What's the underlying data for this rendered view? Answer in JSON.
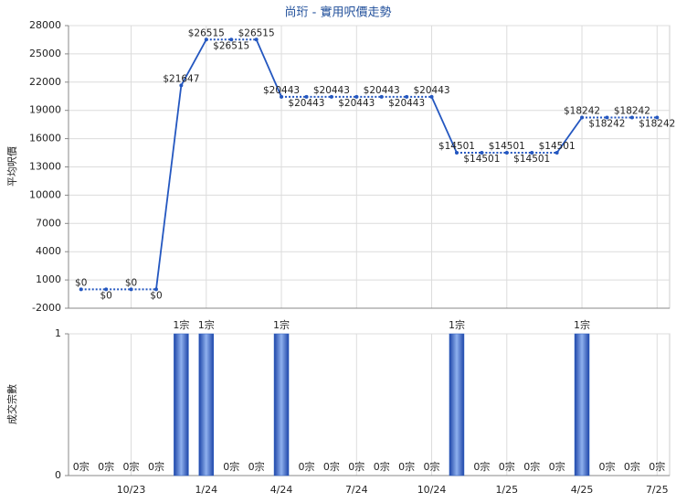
{
  "chart_data": [
    {
      "type": "line",
      "title": "尚珩 - 實用呎價走勢",
      "y_label": "平均呎價",
      "color": "#2457c0",
      "values": [
        0,
        0,
        0,
        0,
        21647,
        26515,
        26515,
        26515,
        20443,
        20443,
        20443,
        20443,
        20443,
        20443,
        20443,
        14501,
        14501,
        14501,
        14501,
        14501,
        18242,
        18242,
        18242,
        18242
      ],
      "value_labels": [
        "$0",
        "$0",
        "$0",
        "$0",
        "$21647",
        "$26515",
        "$26515",
        "$26515",
        "$20443",
        "$20443",
        "$20443",
        "$20443",
        "$20443",
        "$20443",
        "$20443",
        "$14501",
        "$14501",
        "$14501",
        "$14501",
        "$14501",
        "$18242",
        "$18242",
        "$18242",
        "$18242"
      ],
      "ylim": [
        -2000,
        28000
      ],
      "yticks": [
        -2000,
        1000,
        4000,
        7000,
        10000,
        13000,
        16000,
        19000,
        22000,
        25000,
        28000
      ],
      "grid": true
    },
    {
      "type": "bar",
      "y_label": "成交宗數",
      "color": "#2b5fc4",
      "categories": [
        null,
        null,
        "10/23",
        null,
        null,
        "1/24",
        null,
        null,
        "4/24",
        null,
        null,
        "7/24",
        null,
        null,
        "10/24",
        null,
        null,
        "1/25",
        null,
        null,
        "4/25",
        null,
        null,
        "7/25"
      ],
      "values": [
        0,
        0,
        0,
        0,
        1,
        1,
        0,
        0,
        1,
        0,
        0,
        0,
        0,
        0,
        0,
        1,
        0,
        0,
        0,
        0,
        1,
        0,
        0,
        0
      ],
      "value_labels": [
        "0宗",
        "0宗",
        "0宗",
        "0宗",
        "1宗",
        "1宗",
        "0宗",
        "0宗",
        "1宗",
        "0宗",
        "0宗",
        "0宗",
        "0宗",
        "0宗",
        "0宗",
        "1宗",
        "0宗",
        "0宗",
        "0宗",
        "0宗",
        "1宗",
        "0宗",
        "0宗",
        "0宗"
      ],
      "ylim": [
        0,
        1
      ],
      "yticks": [
        0,
        1
      ],
      "grid": true
    }
  ]
}
